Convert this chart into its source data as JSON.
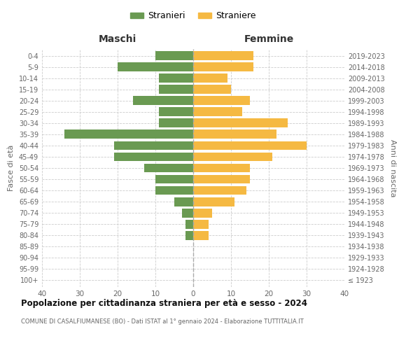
{
  "age_groups": [
    "100+",
    "95-99",
    "90-94",
    "85-89",
    "80-84",
    "75-79",
    "70-74",
    "65-69",
    "60-64",
    "55-59",
    "50-54",
    "45-49",
    "40-44",
    "35-39",
    "30-34",
    "25-29",
    "20-24",
    "15-19",
    "10-14",
    "5-9",
    "0-4"
  ],
  "birth_years": [
    "≤ 1923",
    "1924-1928",
    "1929-1933",
    "1934-1938",
    "1939-1943",
    "1944-1948",
    "1949-1953",
    "1954-1958",
    "1959-1963",
    "1964-1968",
    "1969-1973",
    "1974-1978",
    "1979-1983",
    "1984-1988",
    "1989-1993",
    "1994-1998",
    "1999-2003",
    "2004-2008",
    "2009-2013",
    "2014-2018",
    "2019-2023"
  ],
  "males": [
    0,
    0,
    0,
    0,
    2,
    2,
    3,
    5,
    10,
    10,
    13,
    21,
    21,
    34,
    9,
    9,
    16,
    9,
    9,
    20,
    10
  ],
  "females": [
    0,
    0,
    0,
    0,
    4,
    4,
    5,
    11,
    14,
    15,
    15,
    21,
    30,
    22,
    25,
    13,
    15,
    10,
    9,
    16,
    16
  ],
  "male_color": "#6a9a52",
  "female_color": "#f5b942",
  "background_color": "#ffffff",
  "grid_color": "#cccccc",
  "title": "Popolazione per cittadinanza straniera per età e sesso - 2024",
  "subtitle": "COMUNE DI CASALFIUMANESE (BO) - Dati ISTAT al 1° gennaio 2024 - Elaborazione TUTTITALIA.IT",
  "ylabel_left": "Fasce di età",
  "ylabel_right": "Anni di nascita",
  "header_left": "Maschi",
  "header_right": "Femmine",
  "legend_male": "Stranieri",
  "legend_female": "Straniere",
  "xlim": 40,
  "bar_height": 0.8
}
